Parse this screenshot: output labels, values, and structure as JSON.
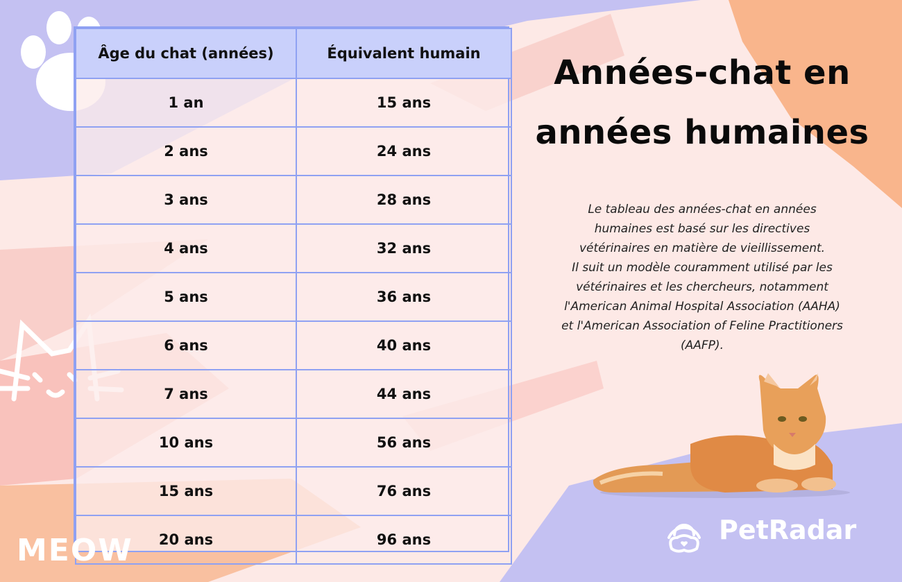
{
  "table": {
    "headers": [
      "Âge du chat (années)",
      "Équivalent humain"
    ],
    "rows": [
      [
        "1 an",
        "15 ans"
      ],
      [
        "2 ans",
        "24 ans"
      ],
      [
        "3 ans",
        "28 ans"
      ],
      [
        "4 ans",
        "32 ans"
      ],
      [
        "5 ans",
        "36 ans"
      ],
      [
        "6 ans",
        "40 ans"
      ],
      [
        "7 ans",
        "44 ans"
      ],
      [
        "10 ans",
        "56 ans"
      ],
      [
        "15 ans",
        "76 ans"
      ],
      [
        "20 ans",
        "96 ans"
      ]
    ]
  },
  "title": {
    "line1": "Années-chat en",
    "line2": "années humaines"
  },
  "description": {
    "lines": [
      "Le tableau des années-chat en années",
      "humaines est basé sur les directives",
      "vétérinaires en matière de vieillissement.",
      "Il suit un modèle couramment utilisé par les",
      "vétérinaires et les chercheurs, notamment",
      "l'American Animal Hospital Association (AAHA)",
      "et l'American Association of Feline Practitioners",
      "(AAFP)."
    ]
  },
  "brand": {
    "name": "PetRadar",
    "icon": "petradar-logo-icon"
  },
  "decor": {
    "meow_text": "MEOW"
  },
  "colors": {
    "background": "#fde9e6",
    "table_border": "#8fa1f2",
    "table_header": "#c9d0fb",
    "lavender": "#c4c1f2",
    "orange": "#f9b58c",
    "salmon": "#f6a9a0"
  }
}
